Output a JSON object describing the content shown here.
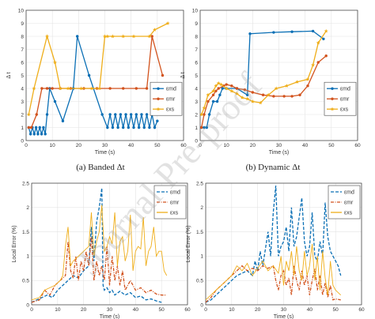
{
  "colors": {
    "md": "#0a6fb5",
    "mr": "#d2521c",
    "xs": "#efae1a"
  },
  "captions": [
    "(a) Banded Δt",
    "(b) Dynamic Δt"
  ],
  "watermark": "Journal Pre-proof",
  "chart_data": [
    {
      "type": "line",
      "xlabel": "Time (s)",
      "ylabel": "Δ t",
      "xlim": [
        0,
        60
      ],
      "ylim": [
        0,
        10
      ],
      "xticks": [
        "0",
        "10",
        "20",
        "30",
        "40",
        "50",
        "60"
      ],
      "yticks": [
        "0",
        "1",
        "2",
        "3",
        "4",
        "5",
        "6",
        "7",
        "8",
        "9",
        "10"
      ],
      "grid": true,
      "legend_position": "right",
      "series": [
        {
          "name": "ε_md",
          "color_key": "md",
          "marker": "circle",
          "style": "solid",
          "x": [
            1,
            1.7,
            2.4,
            3.1,
            3.8,
            4.5,
            5.2,
            5.9,
            6.6,
            7.3,
            8,
            9,
            11,
            14,
            18,
            19.5,
            24,
            29,
            31,
            32,
            33,
            34,
            35,
            36,
            37,
            38,
            39,
            40,
            41,
            42,
            43,
            44,
            45,
            46,
            47,
            48,
            49,
            50
          ],
          "y": [
            1,
            0.5,
            1,
            0.5,
            1,
            0.5,
            1,
            0.5,
            1,
            0.5,
            2,
            4,
            3,
            1.5,
            4,
            8,
            5,
            2,
            1,
            2,
            1,
            2,
            1,
            2,
            1,
            2,
            1,
            2,
            1,
            2,
            1,
            2,
            1,
            2,
            1,
            2,
            1,
            1.5
          ]
        },
        {
          "name": "ε_mr",
          "color_key": "mr",
          "marker": "circle",
          "style": "solid",
          "x": [
            1,
            2,
            4,
            6,
            8,
            10,
            13,
            17,
            22,
            27,
            32,
            37,
            42,
            46,
            48,
            52
          ],
          "y": [
            1,
            1,
            2,
            4,
            4,
            4,
            4,
            4,
            4,
            4,
            4,
            4,
            4,
            4,
            8,
            5
          ]
        },
        {
          "name": "ε_xs",
          "color_key": "xs",
          "marker": "star",
          "style": "solid",
          "x": [
            1,
            3,
            8,
            11,
            13,
            16,
            21,
            25,
            28,
            30,
            31,
            33,
            37,
            41,
            47,
            49,
            54
          ],
          "y": [
            2,
            4,
            8,
            6,
            4,
            4,
            4,
            4,
            4,
            8,
            8,
            8,
            8,
            8,
            8,
            8.5,
            9
          ]
        }
      ]
    },
    {
      "type": "line",
      "xlabel": "Time (s)",
      "ylabel": "Δ t",
      "xlim": [
        0,
        60
      ],
      "ylim": [
        0,
        10
      ],
      "xticks": [
        "0",
        "10",
        "20",
        "30",
        "40",
        "50",
        "60"
      ],
      "yticks": [
        "0",
        "1",
        "2",
        "3",
        "4",
        "5",
        "6",
        "7",
        "8",
        "9",
        "10"
      ],
      "grid": true,
      "legend_position": "right",
      "series": [
        {
          "name": "ε_md",
          "color_key": "md",
          "marker": "circle",
          "style": "solid",
          "x": [
            0.5,
            1.5,
            2.5,
            3.5,
            5,
            6.5,
            7.5,
            8.5,
            10,
            14,
            18,
            19,
            28,
            35,
            43,
            47
          ],
          "y": [
            1,
            1,
            1,
            2,
            3,
            3,
            3.5,
            4,
            4,
            4,
            3.5,
            8.2,
            8.3,
            8.35,
            8.4,
            7.8
          ]
        },
        {
          "name": "ε_mr",
          "color_key": "mr",
          "marker": "circle",
          "style": "solid",
          "x": [
            0.5,
            1.5,
            3,
            5,
            6,
            7,
            9,
            10,
            12,
            14,
            17,
            20,
            24,
            28,
            32,
            35,
            38,
            41,
            45,
            48
          ],
          "y": [
            1,
            2,
            3,
            3.5,
            3.8,
            4,
            4.2,
            4.3,
            4.2,
            4,
            3.9,
            3.7,
            3.5,
            3.4,
            3.4,
            3.4,
            3.5,
            4.2,
            6,
            6.5
          ]
        },
        {
          "name": "ε_xs",
          "color_key": "xs",
          "marker": "star",
          "style": "solid",
          "x": [
            0.5,
            1.5,
            3,
            5,
            6,
            7,
            8,
            10,
            12,
            14,
            16,
            18,
            20,
            23,
            26,
            29,
            33,
            37,
            41,
            43,
            45,
            48
          ],
          "y": [
            2,
            2.5,
            3.5,
            3.8,
            4.2,
            4.4,
            4.3,
            4,
            3.8,
            3.6,
            3.3,
            3.2,
            3,
            2.9,
            3.5,
            4,
            4.2,
            4.5,
            4.7,
            5.8,
            7.5,
            8.4
          ]
        }
      ]
    },
    {
      "type": "line",
      "xlabel": "Time (s)",
      "ylabel": "Local Error (%)",
      "xlim": [
        0,
        60
      ],
      "ylim": [
        0,
        2.5
      ],
      "xticks": [
        "0",
        "10",
        "20",
        "30",
        "40",
        "50",
        "60"
      ],
      "yticks": [
        "0",
        "0.5",
        "1",
        "1.5",
        "2",
        "2.5"
      ],
      "grid": true,
      "legend_position": "top-right",
      "series": [
        {
          "name": "ε_md",
          "color_key": "md",
          "style": "dashed",
          "x": [
            0,
            2,
            4,
            6,
            8,
            10,
            12,
            14,
            16,
            18,
            20,
            22,
            23,
            24,
            25,
            26,
            27,
            27.5,
            28,
            29,
            30,
            31,
            32,
            34,
            36,
            38,
            40,
            42,
            44,
            46,
            48,
            50
          ],
          "y": [
            0.05,
            0.1,
            0.15,
            0.2,
            0.15,
            0.3,
            0.4,
            0.5,
            0.6,
            0.55,
            0.7,
            0.8,
            1.6,
            0.9,
            1.7,
            2.0,
            2.4,
            0.4,
            0.3,
            0.35,
            0.25,
            0.3,
            0.2,
            0.28,
            0.2,
            0.25,
            0.15,
            0.18,
            0.1,
            0.12,
            0.08,
            0.05
          ]
        },
        {
          "name": "ε_mr",
          "color_key": "mr",
          "style": "dashdot",
          "x": [
            0,
            3,
            5,
            7,
            9,
            11,
            13,
            14,
            15,
            16,
            17,
            18,
            19,
            20,
            21,
            22,
            23,
            24,
            25,
            26,
            27,
            28,
            29,
            30,
            31,
            32,
            33,
            34,
            35,
            36,
            38,
            40,
            42,
            44,
            46,
            48,
            50,
            52
          ],
          "y": [
            0.05,
            0.1,
            0.3,
            0.2,
            0.4,
            0.5,
            0.6,
            1.3,
            0.7,
            0.55,
            1.0,
            0.5,
            0.9,
            0.7,
            1.1,
            0.8,
            1.4,
            0.5,
            0.9,
            0.6,
            0.8,
            0.5,
            1.2,
            0.4,
            1.0,
            0.5,
            0.8,
            0.4,
            0.7,
            0.3,
            0.5,
            0.3,
            0.35,
            0.25,
            0.3,
            0.22,
            0.2,
            0.2
          ]
        },
        {
          "name": "ε_xs",
          "color_key": "xs",
          "style": "solid",
          "x": [
            0,
            3,
            5,
            7,
            9,
            11,
            12,
            13,
            14,
            15,
            16,
            18,
            20,
            22,
            23,
            24,
            25,
            26,
            27,
            28,
            29,
            30,
            31,
            32,
            33,
            34,
            35,
            36,
            37,
            38,
            39,
            40,
            41,
            42,
            43,
            44,
            45,
            46,
            47,
            48,
            49,
            50,
            51,
            52
          ],
          "y": [
            0.1,
            0.15,
            0.3,
            0.35,
            0.4,
            0.5,
            0.6,
            1.2,
            1.6,
            0.8,
            0.9,
            1.0,
            1.1,
            1.2,
            1.9,
            1.0,
            1.3,
            1.5,
            2.05,
            1.1,
            1.2,
            1.4,
            1.25,
            1.9,
            0.8,
            1.3,
            1.4,
            0.9,
            1.1,
            1.85,
            0.7,
            1.1,
            1.2,
            1.15,
            1.8,
            0.8,
            1.1,
            1.2,
            1.6,
            1.0,
            1.1,
            1.1,
            0.7,
            0.6
          ]
        }
      ]
    },
    {
      "type": "line",
      "xlabel": "Time (s)",
      "ylabel": "Local Error (%)",
      "xlim": [
        0,
        60
      ],
      "ylim": [
        0,
        2.5
      ],
      "xticks": [
        "0",
        "10",
        "20",
        "30",
        "40",
        "50",
        "60"
      ],
      "yticks": [
        "0",
        "0.5",
        "1",
        "1.5",
        "2",
        "2.5"
      ],
      "grid": true,
      "legend_position": "top-right",
      "series": [
        {
          "name": "ε_md",
          "color_key": "md",
          "style": "dashed",
          "x": [
            0,
            2,
            4,
            6,
            8,
            10,
            12,
            14,
            16,
            18,
            19,
            20,
            21,
            22,
            24,
            25,
            26,
            27,
            28,
            29,
            30,
            31,
            32,
            33,
            34,
            35,
            36,
            37,
            38,
            39,
            40,
            41,
            42,
            43,
            44,
            45,
            46,
            47,
            48,
            49,
            50,
            51,
            52
          ],
          "y": [
            0.05,
            0.1,
            0.2,
            0.3,
            0.4,
            0.5,
            0.6,
            0.65,
            0.7,
            0.6,
            0.9,
            0.7,
            1.1,
            0.8,
            1.5,
            1.0,
            1.9,
            2.45,
            1.0,
            1.2,
            1.3,
            1.6,
            1.1,
            2.0,
            1.2,
            1.4,
            1.8,
            2.2,
            1.3,
            1.0,
            1.2,
            1.9,
            1.0,
            0.9,
            1.3,
            1.0,
            2.1,
            1.4,
            1.1,
            1.0,
            0.9,
            0.8,
            0.6
          ]
        },
        {
          "name": "ε_mr",
          "color_key": "mr",
          "style": "dashdot",
          "x": [
            0,
            2,
            4,
            6,
            8,
            10,
            12,
            14,
            16,
            18,
            20,
            22,
            24,
            26,
            27,
            28,
            29,
            30,
            31,
            32,
            33,
            34,
            35,
            36,
            37,
            38,
            39,
            40,
            41,
            42,
            43,
            44,
            45,
            46,
            47,
            48,
            49,
            50,
            52
          ],
          "y": [
            0.05,
            0.15,
            0.3,
            0.4,
            0.5,
            0.6,
            0.7,
            0.8,
            0.7,
            0.75,
            0.7,
            0.8,
            0.75,
            0.8,
            0.5,
            0.3,
            0.6,
            0.7,
            0.4,
            0.55,
            0.2,
            0.8,
            0.5,
            0.3,
            0.7,
            0.4,
            0.6,
            0.2,
            0.5,
            0.75,
            0.3,
            0.6,
            0.2,
            0.45,
            0.15,
            0.4,
            0.1,
            0.12,
            0.1
          ]
        },
        {
          "name": "ε_xs",
          "color_key": "xs",
          "style": "solid",
          "x": [
            0,
            2,
            4,
            6,
            8,
            10,
            12,
            14,
            16,
            18,
            20,
            22,
            24,
            26,
            28,
            29,
            30,
            31,
            32,
            33,
            34,
            35,
            36,
            37,
            38,
            39,
            40,
            41,
            42,
            43,
            44,
            45,
            46,
            47,
            48,
            49,
            50,
            51,
            52
          ],
          "y": [
            0.1,
            0.2,
            0.3,
            0.4,
            0.5,
            0.6,
            0.8,
            0.7,
            0.85,
            0.6,
            0.75,
            0.9,
            0.7,
            0.8,
            0.65,
            1.0,
            0.4,
            0.9,
            0.7,
            1.1,
            0.6,
            1.2,
            0.7,
            0.5,
            1.1,
            0.6,
            0.8,
            1.25,
            0.5,
            1.0,
            0.3,
            1.1,
            0.55,
            0.2,
            0.9,
            0.4,
            0.3,
            0.25,
            0.2
          ]
        }
      ]
    }
  ]
}
